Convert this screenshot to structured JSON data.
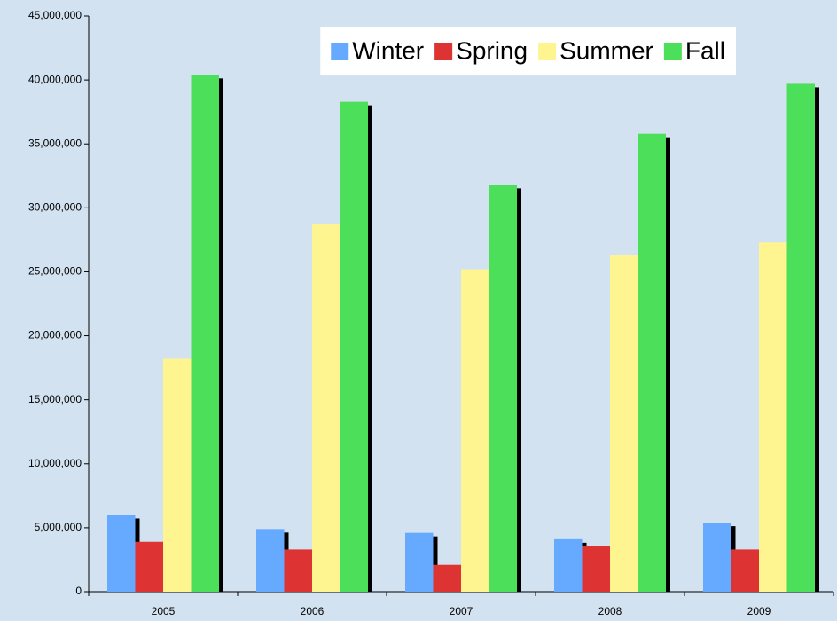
{
  "chart_data": {
    "type": "bar",
    "categories": [
      "2005",
      "2006",
      "2007",
      "2008",
      "2009"
    ],
    "series": [
      {
        "name": "Winter",
        "color": "#66aaff",
        "values": [
          6000000,
          4900000,
          4600000,
          4100000,
          5400000
        ]
      },
      {
        "name": "Spring",
        "color": "#dd3333",
        "values": [
          3900000,
          3300000,
          2100000,
          3600000,
          3300000
        ]
      },
      {
        "name": "Summer",
        "color": "#fff590",
        "values": [
          18200000,
          28700000,
          25200000,
          26300000,
          27300000
        ]
      },
      {
        "name": "Fall",
        "color": "#4ce05a",
        "values": [
          40400000,
          38300000,
          31800000,
          35800000,
          39700000
        ]
      }
    ],
    "ylim": [
      0,
      45000000
    ],
    "yticks": [
      0,
      {
        "value": 5000000,
        "label": "5,000,000"
      },
      {
        "value": 10000000,
        "label": "10,000,000"
      },
      {
        "value": 15000000,
        "label": "15,000,000"
      },
      {
        "value": 20000000,
        "label": "20,000,000"
      },
      {
        "value": 25000000,
        "label": "25,000,000"
      },
      {
        "value": 30000000,
        "label": "30,000,000"
      },
      {
        "value": 35000000,
        "label": "35,000,000"
      },
      {
        "value": 40000000,
        "label": "40,000,000"
      },
      {
        "value": 45000000,
        "label": "45,000,000"
      }
    ],
    "legend": "top-right"
  }
}
